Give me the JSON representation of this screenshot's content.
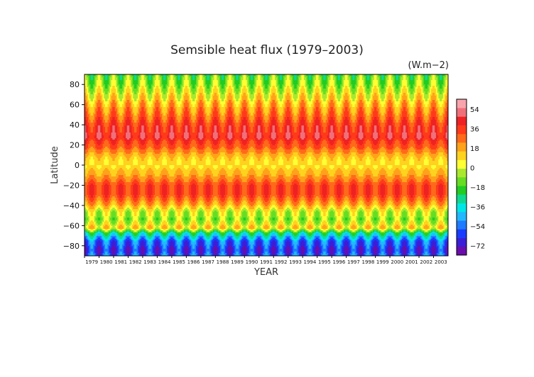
{
  "chart_data": {
    "type": "heatmap",
    "title": "Semsible heat flux (1979–2003)",
    "units": "(W.m−2)",
    "xlabel": "YEAR",
    "ylabel": "Latitude",
    "x_categories": [
      "1979",
      "1980",
      "1981",
      "1982",
      "1983",
      "1984",
      "1985",
      "1986",
      "1987",
      "1988",
      "1989",
      "1990",
      "1991",
      "1992",
      "1993",
      "1994",
      "1995",
      "1996",
      "1997",
      "1998",
      "1999",
      "2000",
      "2001",
      "2002",
      "2003"
    ],
    "y_ticks": [
      "80",
      "60",
      "40",
      "20",
      "0",
      "−20",
      "−40",
      "−60",
      "−80"
    ],
    "ylim": [
      -90,
      90
    ],
    "colorbar": {
      "labels": [
        "54",
        "36",
        "18",
        "0",
        "−18",
        "−36",
        "−54",
        "−72"
      ],
      "range": [
        -81,
        63
      ],
      "colors": [
        "#6a0dad",
        "#3a1fd6",
        "#1a3cff",
        "#1f7bff",
        "#22b8ff",
        "#00e6e6",
        "#10d890",
        "#22cc22",
        "#66dd22",
        "#aae830",
        "#ffff33",
        "#ffd21f",
        "#ffa21a",
        "#ff6a1a",
        "#ff3a1a",
        "#ee2222",
        "#f0707a",
        "#f8a4ac"
      ]
    },
    "zonal_profile": [
      {
        "lat": 90,
        "value": -14
      },
      {
        "lat": 82,
        "value": -10
      },
      {
        "lat": 70,
        "value": 4
      },
      {
        "lat": 62,
        "value": 14
      },
      {
        "lat": 50,
        "value": 26
      },
      {
        "lat": 38,
        "value": 38
      },
      {
        "lat": 28,
        "value": 42
      },
      {
        "lat": 18,
        "value": 30
      },
      {
        "lat": 8,
        "value": 12
      },
      {
        "lat": 0,
        "value": 8
      },
      {
        "lat": -10,
        "value": 18
      },
      {
        "lat": -20,
        "value": 34
      },
      {
        "lat": -28,
        "value": 36
      },
      {
        "lat": -38,
        "value": 20
      },
      {
        "lat": -46,
        "value": 0
      },
      {
        "lat": -54,
        "value": -8
      },
      {
        "lat": -62,
        "value": 10
      },
      {
        "lat": -68,
        "value": -30
      },
      {
        "lat": -76,
        "value": -56
      },
      {
        "lat": -84,
        "value": -64
      },
      {
        "lat": -90,
        "value": -58
      }
    ]
  }
}
